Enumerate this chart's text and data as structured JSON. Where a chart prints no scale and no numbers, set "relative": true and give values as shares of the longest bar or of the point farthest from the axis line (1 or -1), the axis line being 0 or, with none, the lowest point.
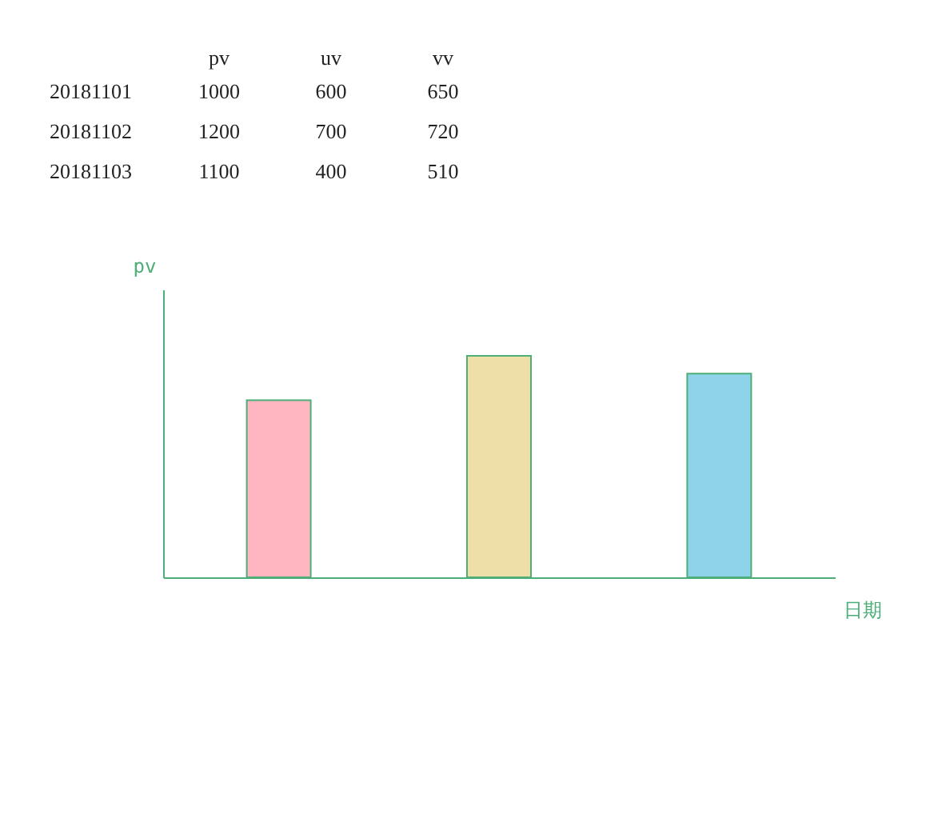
{
  "chart_data": [
    {
      "type": "heatmap",
      "categories": [
        "pv",
        "uv",
        "vv"
      ],
      "y_categories": [
        "20181101",
        "20181102",
        "20181103"
      ],
      "data_labels": true,
      "cells": [
        [
          1000,
          600,
          650
        ],
        [
          1200,
          700,
          720
        ],
        [
          1100,
          400,
          510
        ]
      ]
    },
    {
      "type": "bar",
      "relative": true,
      "ylabel": "pv",
      "xlabel": "日期",
      "categories": [
        null,
        null,
        null
      ],
      "values": [
        0.8,
        1,
        0.92
      ],
      "colors": [
        "#ffb6c1",
        "#eedfa8",
        "#8ed3e9"
      ],
      "tick_labels": false
    }
  ]
}
